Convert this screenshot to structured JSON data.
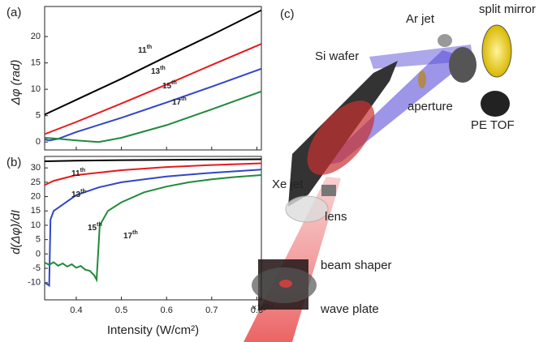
{
  "chart_data": [
    {
      "type": "line",
      "panel_label": "(a)",
      "y_label": "Δφ (rad)",
      "xlim": [
        0.33,
        0.81
      ],
      "xticks": [
        0.4,
        0.5,
        0.6,
        0.7,
        0.8
      ],
      "ylim": [
        -1.5,
        25.7
      ],
      "yticks": [
        0,
        5,
        10,
        15,
        20
      ],
      "series": [
        {
          "color": "#000000",
          "x": [
            0.33,
            0.4,
            0.5,
            0.6,
            0.7,
            0.81
          ],
          "values": [
            5.2,
            8.0,
            12.0,
            16.2,
            20.3,
            25.0
          ]
        },
        {
          "color": "#e8191c",
          "x": [
            0.33,
            0.4,
            0.5,
            0.6,
            0.7,
            0.81
          ],
          "values": [
            1.5,
            3.8,
            7.3,
            10.9,
            14.6,
            18.6
          ]
        },
        {
          "color": "#2f46c8",
          "x": [
            0.33,
            0.34,
            0.36,
            0.4,
            0.5,
            0.6,
            0.7,
            0.81
          ],
          "values": [
            0.5,
            0.3,
            0.6,
            1.9,
            4.6,
            7.5,
            10.5,
            13.9
          ]
        },
        {
          "color": "#1f8a3a",
          "x": [
            0.33,
            0.36,
            0.4,
            0.45,
            0.5,
            0.6,
            0.7,
            0.81
          ],
          "values": [
            0.8,
            0.6,
            0.3,
            0,
            0.8,
            3.2,
            6.2,
            9.6
          ]
        }
      ],
      "annotations": [
        {
          "text": "11",
          "sup": "th"
        },
        {
          "text": "13",
          "sup": "th"
        },
        {
          "text": "15",
          "sup": "th"
        },
        {
          "text": "17",
          "sup": "th"
        }
      ]
    },
    {
      "type": "line",
      "panel_label": "(b)",
      "y_label": "d(Δφ)/dI",
      "x_label": "Intensity (W/cm²)",
      "x_multiplier": "×10¹⁴",
      "xlim": [
        0.33,
        0.81
      ],
      "xticks": [
        0.4,
        0.5,
        0.6,
        0.7,
        0.8
      ],
      "ylim": [
        -16,
        34
      ],
      "yticks": [
        -10,
        -5,
        0,
        5,
        10,
        15,
        20,
        25,
        30
      ],
      "series": [
        {
          "color": "#000000",
          "x": [
            0.33,
            0.4,
            0.5,
            0.6,
            0.7,
            0.81
          ],
          "values": [
            32.3,
            32.5,
            32.7,
            32.8,
            32.9,
            33
          ]
        },
        {
          "color": "#e8191c",
          "x": [
            0.33,
            0.35,
            0.4,
            0.5,
            0.6,
            0.7,
            0.81
          ],
          "values": [
            24,
            25.5,
            27.5,
            29.2,
            30.3,
            31,
            31.6
          ]
        },
        {
          "color": "#2f46c8",
          "x": [
            0.33,
            0.335,
            0.34,
            0.343,
            0.35,
            0.4,
            0.45,
            0.5,
            0.6,
            0.7,
            0.81
          ],
          "values": [
            -10,
            -10.5,
            -11,
            12,
            15,
            20.5,
            23.2,
            25,
            27,
            28.3,
            29.4
          ]
        },
        {
          "color": "#1f8a3a",
          "x": [
            0.33,
            0.34,
            0.35,
            0.36,
            0.37,
            0.38,
            0.39,
            0.4,
            0.41,
            0.42,
            0.43,
            0.44,
            0.445,
            0.452,
            0.47,
            0.5,
            0.55,
            0.6,
            0.65,
            0.7,
            0.75,
            0.81
          ],
          "values": [
            -3,
            -3.8,
            -2.9,
            -4.1,
            -3.3,
            -4.4,
            -3.6,
            -4.8,
            -4.2,
            -5.5,
            -5.9,
            -7.5,
            -9,
            10,
            15,
            18,
            21.5,
            23.5,
            25,
            26,
            26.8,
            27.5
          ]
        }
      ],
      "annotations": [
        {
          "text": "11",
          "sup": "th"
        },
        {
          "text": "13",
          "sup": "th"
        },
        {
          "text": "15",
          "sup": "th"
        },
        {
          "text": "17",
          "sup": "th"
        }
      ]
    }
  ],
  "diagram": {
    "panel_label": "(c)",
    "labels": [
      "Ar jet",
      "split mirror",
      "Si wafer",
      "aperture",
      "PE TOF",
      "Xe jet",
      "lens",
      "beam shaper",
      "wave plate"
    ]
  }
}
